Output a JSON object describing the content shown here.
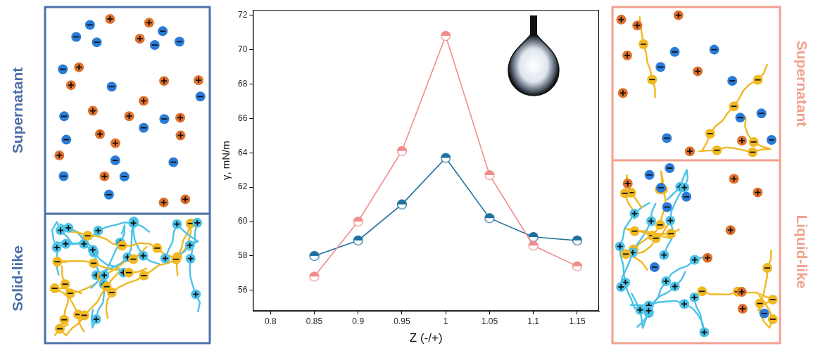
{
  "chart_data": {
    "type": "line",
    "x_label": "Z (-/+)",
    "y_label": "γ, mN/m",
    "x": [
      0.85,
      0.9,
      0.95,
      1,
      1.05,
      1.1,
      1.15
    ],
    "series": [
      {
        "color": "#f08c8c",
        "marker": "half-filled circle",
        "values": [
          56.8,
          60.0,
          64.1,
          70.8,
          62.7,
          58.6,
          57.4
        ]
      },
      {
        "color": "#1f6f9f",
        "marker": "half-filled circle",
        "values": [
          58.0,
          58.9,
          61.0,
          63.7,
          60.2,
          59.1,
          58.9
        ]
      }
    ],
    "xlim": [
      0.78,
      1.175
    ],
    "xticks": [
      0.8,
      0.85,
      0.9,
      0.95,
      1,
      1.05,
      1.1,
      1.15
    ],
    "ylim": [
      54.8,
      72.3
    ],
    "yticks": [
      56,
      58,
      60,
      62,
      64,
      66,
      68,
      70,
      72
    ],
    "grid": false
  },
  "panels": [
    {
      "color": "#4a70a8",
      "top": "Supernatant",
      "bottom": "Solid-like"
    },
    {
      "color": "#f2a08e",
      "top": "Supernatant",
      "bottom": "Liquid-like"
    }
  ]
}
